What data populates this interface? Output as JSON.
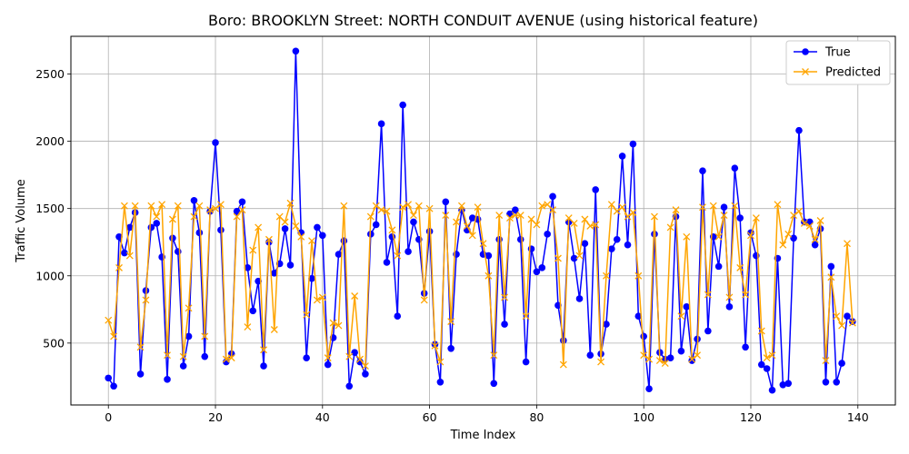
{
  "chart_data": {
    "type": "line",
    "title": "Boro: BROOKLYN Street: NORTH CONDUIT AVENUE (using historical feature)",
    "xlabel": "Time Index",
    "ylabel": "Traffic Volume",
    "xlim": [
      -7,
      147
    ],
    "ylim": [
      40,
      2780
    ],
    "xticks": [
      0,
      20,
      40,
      60,
      80,
      100,
      120,
      140
    ],
    "yticks": [
      500,
      1000,
      1500,
      2000,
      2500
    ],
    "grid": true,
    "legend_position": "upper right",
    "series": [
      {
        "name": "True",
        "color": "#0000ff",
        "marker": "circle",
        "values": [
          240,
          180,
          1290,
          1170,
          1360,
          1470,
          270,
          890,
          1360,
          1390,
          1140,
          230,
          1280,
          1180,
          330,
          550,
          1560,
          1320,
          400,
          1480,
          1990,
          1340,
          360,
          420,
          1480,
          1550,
          1060,
          740,
          960,
          330,
          1250,
          1020,
          1090,
          1350,
          1080,
          2670,
          1320,
          390,
          980,
          1360,
          1300,
          340,
          540,
          1160,
          1260,
          180,
          430,
          360,
          270,
          1310,
          1380,
          2130,
          1100,
          1290,
          700,
          2270,
          1180,
          1400,
          1270,
          870,
          1330,
          490,
          210,
          1550,
          460,
          1160,
          1490,
          1340,
          1430,
          1420,
          1160,
          1150,
          200,
          1270,
          640,
          1460,
          1490,
          1270,
          360,
          1200,
          1030,
          1060,
          1310,
          1590,
          780,
          520,
          1400,
          1130,
          830,
          1240,
          410,
          1640,
          420,
          640,
          1200,
          1270,
          1890,
          1230,
          1980,
          700,
          550,
          160,
          1310,
          430,
          380,
          390,
          1440,
          440,
          770,
          370,
          530,
          1780,
          590,
          1290,
          1070,
          1510,
          770,
          1800,
          1430,
          470,
          1320,
          1150,
          340,
          310,
          150,
          1130,
          190,
          200,
          1280,
          2080,
          1400,
          1400,
          1230,
          1350,
          210,
          1070,
          210,
          350,
          700,
          660
        ]
      },
      {
        "name": "Predicted",
        "color": "#ffa500",
        "marker": "x",
        "values": [
          670,
          550,
          1060,
          1520,
          1150,
          1520,
          470,
          820,
          1520,
          1440,
          1530,
          410,
          1420,
          1520,
          400,
          760,
          1440,
          1520,
          550,
          1490,
          1500,
          1530,
          380,
          390,
          1440,
          1490,
          620,
          1190,
          1360,
          450,
          1270,
          600,
          1440,
          1400,
          1540,
          1370,
          1290,
          710,
          1260,
          820,
          840,
          390,
          650,
          630,
          1520,
          400,
          850,
          380,
          330,
          1440,
          1520,
          1490,
          1480,
          1340,
          1150,
          1510,
          1530,
          1450,
          1520,
          820,
          1500,
          480,
          360,
          1450,
          660,
          1400,
          1520,
          1370,
          1300,
          1510,
          1240,
          1000,
          410,
          1450,
          840,
          1430,
          1450,
          1450,
          700,
          1420,
          1380,
          1520,
          1530,
          1490,
          1130,
          340,
          1430,
          1390,
          1150,
          1420,
          1370,
          1380,
          360,
          1000,
          1530,
          1480,
          1510,
          1440,
          1470,
          1000,
          410,
          380,
          1440,
          370,
          350,
          1360,
          1490,
          700,
          1290,
          380,
          410,
          1510,
          860,
          1520,
          1290,
          1450,
          840,
          1520,
          1060,
          860,
          1300,
          1430,
          590,
          390,
          410,
          1530,
          1230,
          1310,
          1450,
          1480,
          1390,
          1370,
          1270,
          1410,
          370,
          990,
          700,
          630,
          1240,
          650
        ]
      }
    ]
  }
}
